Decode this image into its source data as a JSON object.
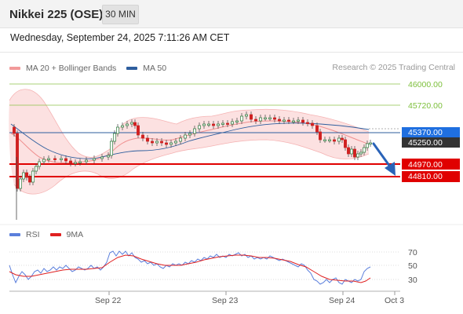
{
  "header": {
    "title": "Nikkei 225 (OSE)",
    "interval": "30 MIN",
    "datetime": "Wednesday, September 24, 2025 7:11:26 AM CET"
  },
  "legend_main": [
    {
      "label": "MA 20 + Bollinger Bands",
      "color": "#f29a9a"
    },
    {
      "label": "MA 50",
      "color": "#2e5e9e"
    }
  ],
  "legend_rsi": [
    {
      "label": "RSI",
      "color": "#5b7fdc"
    },
    {
      "label": "9MA",
      "color": "#e02020"
    }
  ],
  "credit": "Research © 2025 Trading Central",
  "colors": {
    "resistance": "#7cbf3a",
    "support": "#e00000",
    "pivot_label_bg": "#1f6fe0",
    "last_price_bg": "#333333",
    "candle_up": "#2a7a3a",
    "candle_down": "#d02020",
    "forecast_arrow": "#2a63b8"
  },
  "chart_data": {
    "type": "candlestick",
    "y_range": [
      44550,
      46100
    ],
    "levels": [
      {
        "value": 46000,
        "label": "46000.00",
        "kind": "resistance"
      },
      {
        "value": 45720,
        "label": "45720.00",
        "kind": "resistance"
      },
      {
        "value": 45370,
        "label": "45370.00",
        "kind": "pivot"
      },
      {
        "value": 45250,
        "label": "45250.00",
        "kind": "last"
      },
      {
        "value": 44970,
        "label": "44970.00",
        "kind": "support"
      },
      {
        "value": 44810,
        "label": "44810.00",
        "kind": "support"
      }
    ],
    "x_ticks": [
      "Sep 22",
      "Sep 23",
      "Sep 24",
      "Oct 3"
    ],
    "rsi_ticks": [
      70,
      50,
      30
    ]
  }
}
